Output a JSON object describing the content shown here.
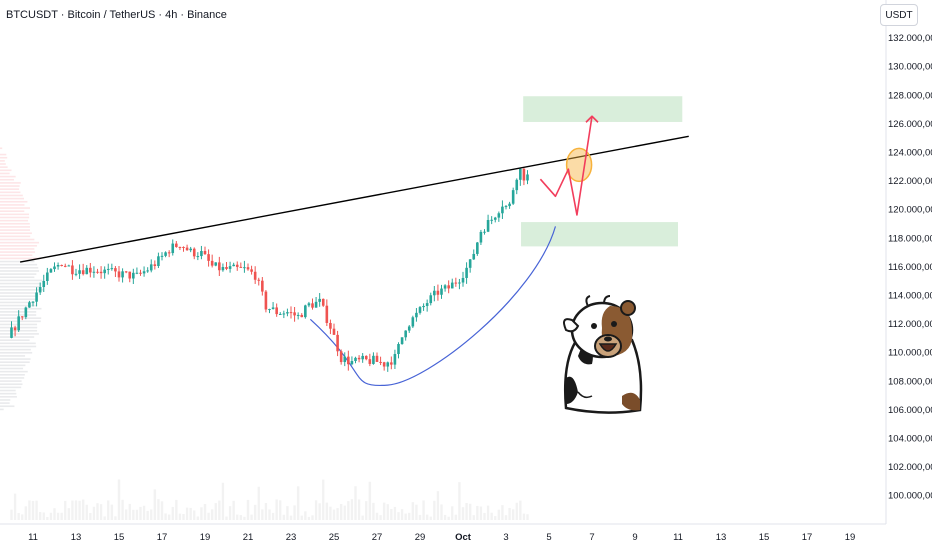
{
  "header": {
    "symbol_title": "BTCUSDT · Bitcoin / TetherUS · 4h · Binance",
    "currency": "USDT"
  },
  "chart_data": {
    "type": "candlestick",
    "symbol": "BTCUSDT",
    "timeframe": "4h",
    "exchange": "Binance",
    "y_ticks": [
      "132.000,00",
      "130.000,00",
      "128.000,00",
      "126.000,00",
      "124.000,00",
      "122.000,00",
      "120.000,00",
      "118.000,00",
      "116.000,00",
      "114.000,00",
      "112.000,00",
      "110.000,00",
      "108.000,00",
      "106.000,00",
      "104.000,00",
      "102.000,00",
      "100.000,00"
    ],
    "y_tick_values": [
      132000,
      130000,
      128000,
      126000,
      124000,
      122000,
      120000,
      118000,
      116000,
      114000,
      112000,
      110000,
      108000,
      106000,
      104000,
      102000,
      100000
    ],
    "x_ticks": [
      "11",
      "13",
      "15",
      "17",
      "19",
      "21",
      "23",
      "25",
      "27",
      "29",
      "Oct",
      "3",
      "5",
      "7",
      "9",
      "11",
      "13",
      "15",
      "17",
      "19"
    ],
    "ylim": [
      98500,
      133300
    ],
    "price_path": [
      [
        10,
        111000
      ],
      [
        11,
        113500
      ],
      [
        12,
        115600
      ],
      [
        12.5,
        116300
      ],
      [
        13,
        115800
      ],
      [
        14,
        115800
      ],
      [
        15,
        115500
      ],
      [
        16,
        115300
      ],
      [
        16.5,
        115800
      ],
      [
        17,
        116400
      ],
      [
        17.5,
        117200
      ],
      [
        18,
        117600
      ],
      [
        18.5,
        117000
      ],
      [
        19,
        116900
      ],
      [
        19.5,
        116000
      ],
      [
        20,
        115800
      ],
      [
        21,
        115800
      ],
      [
        21.5,
        115400
      ],
      [
        22,
        113200
      ],
      [
        22.5,
        112800
      ],
      [
        23,
        112800
      ],
      [
        23.5,
        112500
      ],
      [
        24,
        113300
      ],
      [
        24.5,
        113500
      ],
      [
        25,
        111800
      ],
      [
        25.5,
        109600
      ],
      [
        26,
        109300
      ],
      [
        26.5,
        109400
      ],
      [
        27,
        109400
      ],
      [
        27.5,
        109200
      ],
      [
        28,
        109600
      ],
      [
        28.5,
        111800
      ],
      [
        29,
        112600
      ],
      [
        29.5,
        113500
      ],
      [
        30,
        114200
      ],
      [
        30.5,
        114500
      ],
      [
        31,
        115200
      ],
      [
        31.5,
        116200
      ],
      [
        32,
        118500
      ],
      [
        32.5,
        119300
      ],
      [
        33,
        120400
      ],
      [
        33.3,
        120000
      ],
      [
        33.6,
        122200
      ],
      [
        33.8,
        122800
      ],
      [
        34,
        122300
      ]
    ],
    "annotations": {
      "trendline": {
        "from": {
          "day": 10.4,
          "price": 116300
        },
        "to": {
          "day": 41.5,
          "price": 125100
        },
        "color": "#000000"
      },
      "rounded_bottom_curve": {
        "color": "#4763d6",
        "points": [
          [
            23.9,
            112300
          ],
          [
            27.5,
            107700
          ],
          [
            35.3,
            118800
          ]
        ]
      },
      "zones": [
        {
          "name": "upper-target-zone",
          "price_top": 127900,
          "price_bottom": 126100,
          "day_from": 33.8,
          "day_to": 41.2,
          "color": "#d9eedb"
        },
        {
          "name": "support-zone",
          "price_top": 119100,
          "price_bottom": 117400,
          "day_from": 33.7,
          "day_to": 41.0,
          "color": "#d9eedb"
        }
      ],
      "breakout_circle": {
        "day": 36.4,
        "price": 123100,
        "color": "#f7b23b"
      },
      "projection_path": {
        "color": "#f23d5c",
        "points": [
          [
            34.6,
            122100
          ],
          [
            35.3,
            120900
          ],
          [
            35.9,
            122800
          ],
          [
            36.3,
            119600
          ],
          [
            37.0,
            126500
          ]
        ]
      }
    },
    "grid": false,
    "legend": "none"
  }
}
